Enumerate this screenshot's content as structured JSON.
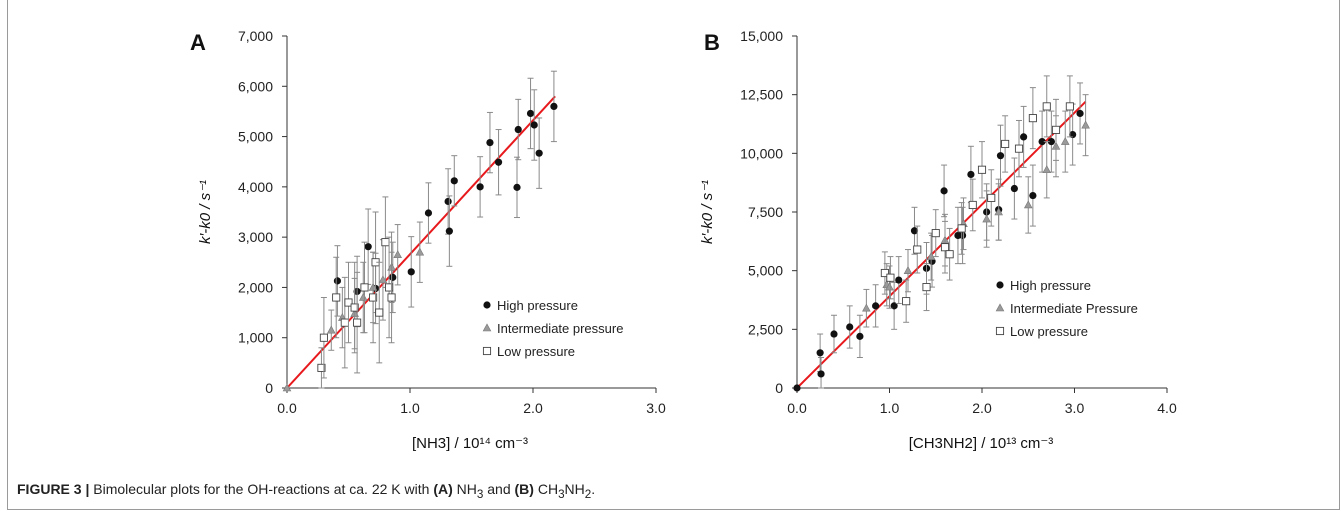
{
  "caption": {
    "figure_label": "FIGURE 3 |",
    "text_1": " Bimolecular plots for the OH-reactions at ca. 22 K with ",
    "a_ref": "(A)",
    "a_species": " NH",
    "a_sub": "3",
    "and": " and ",
    "b_ref": "(B)",
    "b_species": " CH",
    "b_sub1": "3",
    "b_mid": "NH",
    "b_sub2": "2",
    "end": "."
  },
  "chart_data": [
    {
      "type": "scatter",
      "panel_label": "A",
      "ylabel": "k′-k0 / s⁻¹",
      "xlabel": "[NH3] / 10¹⁴ cm⁻³",
      "xlim": [
        0.0,
        3.0
      ],
      "ylim": [
        0,
        7000
      ],
      "x_ticks": [
        "0.0",
        "1.0",
        "2.0",
        "3.0"
      ],
      "y_ticks": [
        "0",
        "1,000",
        "2,000",
        "3,000",
        "4,000",
        "5,000",
        "6,000",
        "7,000"
      ],
      "grid": false,
      "legend_position": "bottom-right",
      "fit_line": {
        "x": [
          0.0,
          2.18
        ],
        "y": [
          0,
          5800
        ],
        "color": "#e8191c"
      },
      "series": [
        {
          "name": "High pressure",
          "marker": "filled-circle",
          "color": "#111111",
          "points": [
            [
              0.41,
              2130,
              700
            ],
            [
              0.57,
              1920,
              700
            ],
            [
              0.66,
              2810,
              750
            ],
            [
              0.72,
              1980,
              700
            ],
            [
              0.86,
              2200,
              700
            ],
            [
              1.01,
              2310,
              700
            ],
            [
              1.15,
              3480,
              600
            ],
            [
              1.31,
              3710,
              650
            ],
            [
              1.32,
              3120,
              700
            ],
            [
              1.36,
              4120,
              500
            ],
            [
              1.57,
              4000,
              600
            ],
            [
              1.65,
              4880,
              600
            ],
            [
              1.72,
              4490,
              650
            ],
            [
              1.87,
              3990,
              600
            ],
            [
              1.88,
              5140,
              600
            ],
            [
              1.98,
              5460,
              700
            ],
            [
              2.01,
              5230,
              700
            ],
            [
              2.05,
              4670,
              700
            ],
            [
              2.17,
              5600,
              700
            ]
          ]
        },
        {
          "name": "Intermediate pressure",
          "marker": "triangle",
          "color": "#888888",
          "points": [
            [
              0.0,
              0,
              0
            ],
            [
              0.36,
              1150,
              400
            ],
            [
              0.45,
              1400,
              600
            ],
            [
              0.55,
              1480,
              700
            ],
            [
              0.62,
              1800,
              700
            ],
            [
              0.7,
              2000,
              700
            ],
            [
              0.78,
              2150,
              800
            ],
            [
              0.85,
              2400,
              700
            ],
            [
              0.9,
              2650,
              600
            ],
            [
              1.08,
              2700,
              600
            ]
          ]
        },
        {
          "name": "Low pressure",
          "marker": "open-square",
          "color": "#555555",
          "points": [
            [
              0.28,
              400,
              400
            ],
            [
              0.3,
              1000,
              800
            ],
            [
              0.4,
              1800,
              800
            ],
            [
              0.47,
              1300,
              900
            ],
            [
              0.5,
              1700,
              800
            ],
            [
              0.55,
              1600,
              900
            ],
            [
              0.57,
              1300,
              1000
            ],
            [
              0.63,
              2000,
              900
            ],
            [
              0.7,
              1800,
              900
            ],
            [
              0.72,
              2500,
              1000
            ],
            [
              0.75,
              1500,
              1000
            ],
            [
              0.8,
              2900,
              900
            ],
            [
              0.83,
              2000,
              1000
            ],
            [
              0.85,
              1800,
              900
            ]
          ]
        }
      ]
    },
    {
      "type": "scatter",
      "panel_label": "B",
      "ylabel": "k′-k0 / s⁻¹",
      "xlabel": "[CH3NH2] / 10¹³ cm⁻³",
      "xlim": [
        0.0,
        4.0
      ],
      "ylim": [
        0,
        15000
      ],
      "x_ticks": [
        "0.0",
        "1.0",
        "2.0",
        "3.0",
        "4.0"
      ],
      "y_ticks": [
        "0",
        "2,500",
        "5,000",
        "7,500",
        "10,000",
        "12,500",
        "15,000"
      ],
      "grid": false,
      "legend_position": "bottom-right",
      "fit_line": {
        "x": [
          0.0,
          3.12
        ],
        "y": [
          0,
          12200
        ],
        "color": "#e8191c"
      },
      "series": [
        {
          "name": "High pressure",
          "marker": "filled-circle",
          "color": "#111111",
          "points": [
            [
              0.0,
              0,
              0
            ],
            [
              0.25,
              1500,
              800
            ],
            [
              0.26,
              600,
              700
            ],
            [
              0.4,
              2300,
              800
            ],
            [
              0.57,
              2600,
              900
            ],
            [
              0.68,
              2200,
              900
            ],
            [
              0.85,
              3500,
              900
            ],
            [
              1.05,
              3500,
              1000
            ],
            [
              1.1,
              4600,
              1000
            ],
            [
              1.27,
              6700,
              1000
            ],
            [
              1.4,
              5100,
              1100
            ],
            [
              1.46,
              5400,
              1100
            ],
            [
              1.59,
              8400,
              1100
            ],
            [
              1.74,
              6500,
              1200
            ],
            [
              1.79,
              6500,
              1200
            ],
            [
              1.88,
              9100,
              1200
            ],
            [
              2.05,
              7500,
              1200
            ],
            [
              2.18,
              7600,
              1300
            ],
            [
              2.2,
              9900,
              1300
            ],
            [
              2.35,
              8500,
              1300
            ],
            [
              2.45,
              10700,
              1300
            ],
            [
              2.55,
              8200,
              1300
            ],
            [
              2.65,
              10500,
              1300
            ],
            [
              2.75,
              10500,
              1300
            ],
            [
              2.98,
              10800,
              1300
            ],
            [
              3.06,
              11700,
              1300
            ]
          ]
        },
        {
          "name": "Intermediate Pressure",
          "marker": "triangle",
          "color": "#888888",
          "points": [
            [
              0.75,
              3400,
              800
            ],
            [
              0.97,
              4400,
              900
            ],
            [
              1.0,
              4300,
              900
            ],
            [
              1.2,
              5000,
              900
            ],
            [
              1.45,
              5600,
              1000
            ],
            [
              1.6,
              6300,
              1100
            ],
            [
              1.8,
              7000,
              1100
            ],
            [
              2.05,
              7200,
              1200
            ],
            [
              2.18,
              7500,
              1200
            ],
            [
              2.5,
              7800,
              1200
            ],
            [
              2.7,
              9300,
              1200
            ],
            [
              2.8,
              10300,
              1300
            ],
            [
              2.9,
              10500,
              1300
            ],
            [
              3.12,
              11200,
              1300
            ]
          ]
        },
        {
          "name": "Low pressure",
          "marker": "open-square",
          "color": "#555555",
          "points": [
            [
              0.95,
              4900,
              900
            ],
            [
              1.01,
              4700,
              900
            ],
            [
              1.18,
              3700,
              900
            ],
            [
              1.3,
              5900,
              1000
            ],
            [
              1.4,
              4300,
              1000
            ],
            [
              1.5,
              6600,
              1000
            ],
            [
              1.6,
              6000,
              1100
            ],
            [
              1.65,
              5700,
              1100
            ],
            [
              1.78,
              6800,
              1100
            ],
            [
              1.9,
              7800,
              1100
            ],
            [
              2.0,
              9300,
              1200
            ],
            [
              2.1,
              8100,
              1200
            ],
            [
              2.25,
              10400,
              1200
            ],
            [
              2.4,
              10200,
              1200
            ],
            [
              2.55,
              11500,
              1300
            ],
            [
              2.8,
              11000,
              1300
            ],
            [
              2.95,
              12000,
              1300
            ],
            [
              2.7,
              12000,
              1300
            ]
          ]
        }
      ]
    }
  ]
}
